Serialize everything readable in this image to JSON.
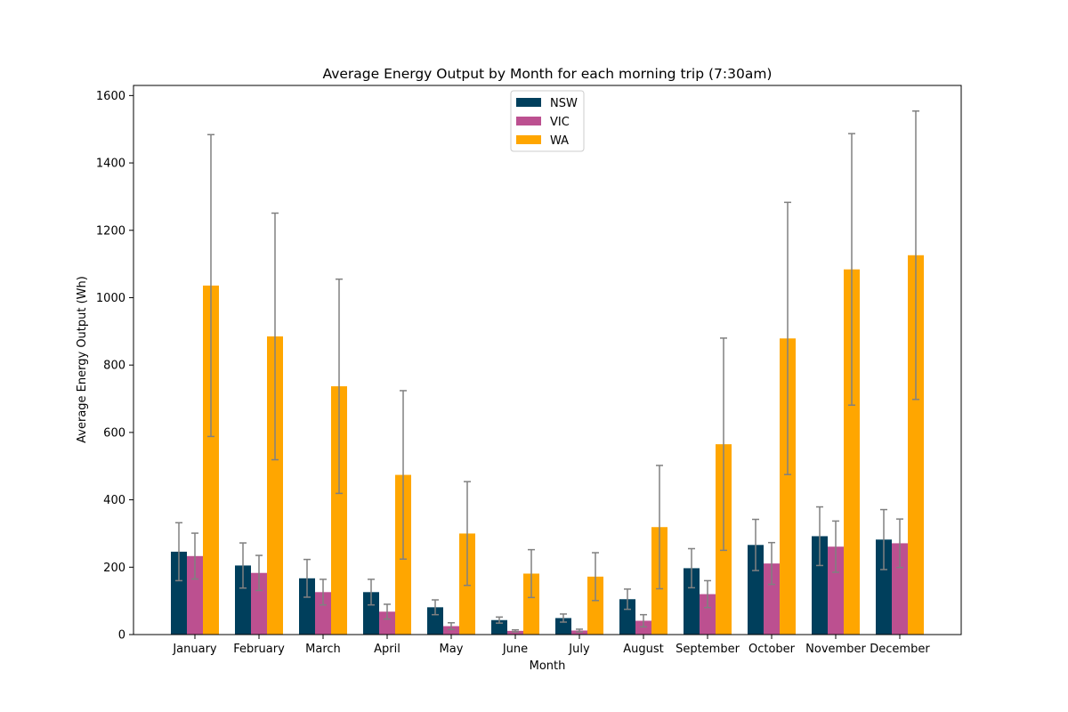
{
  "chart_data": {
    "type": "bar",
    "title": "Average Energy Output by Month for each morning trip (7:30am)",
    "xlabel": "Month",
    "ylabel": "Average Energy Output (Wh)",
    "ylim": [
      0,
      1630
    ],
    "yticks": [
      0,
      200,
      400,
      600,
      800,
      1000,
      1200,
      1400,
      1600
    ],
    "grid": false,
    "legend_position": "top-center",
    "error_bar_color": "#808080",
    "categories": [
      "January",
      "February",
      "March",
      "April",
      "May",
      "June",
      "July",
      "August",
      "September",
      "October",
      "November",
      "December"
    ],
    "series": [
      {
        "name": "NSW",
        "color": "#003f5c",
        "values": [
          246,
          205,
          167,
          126,
          81,
          43,
          49,
          105,
          197,
          266,
          292,
          282
        ],
        "errors": [
          86,
          67,
          56,
          38,
          22,
          9,
          12,
          30,
          58,
          76,
          87,
          89
        ]
      },
      {
        "name": "VIC",
        "color": "#bc5090",
        "values": [
          233,
          183,
          126,
          68,
          25,
          11,
          12,
          41,
          120,
          211,
          261,
          271
        ],
        "errors": [
          68,
          52,
          38,
          22,
          10,
          3,
          4,
          18,
          40,
          62,
          76,
          72
        ]
      },
      {
        "name": "WA",
        "color": "#ffa600",
        "values": [
          1036,
          885,
          737,
          474,
          300,
          181,
          172,
          319,
          565,
          879,
          1084,
          1126
        ],
        "errors": [
          448,
          366,
          318,
          250,
          154,
          71,
          71,
          183,
          315,
          404,
          403,
          428
        ]
      }
    ]
  }
}
